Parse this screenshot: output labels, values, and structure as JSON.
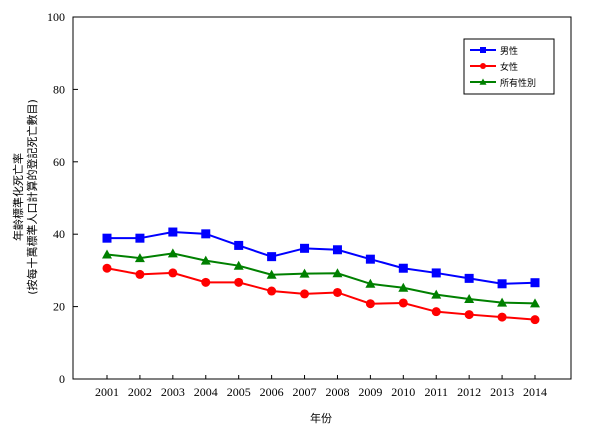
{
  "chart_data": {
    "type": "line",
    "categories": [
      "2001",
      "2002",
      "2003",
      "2004",
      "2005",
      "2006",
      "2007",
      "2008",
      "2009",
      "2010",
      "2011",
      "2012",
      "2013",
      "2014"
    ],
    "series": [
      {
        "name": "男性",
        "color": "#0000ff",
        "marker": "square",
        "values": [
          38.9,
          38.9,
          40.6,
          40.1,
          36.9,
          33.8,
          36.1,
          35.7,
          33.1,
          30.6,
          29.3,
          27.8,
          26.3,
          26.6
        ]
      },
      {
        "name": "女性",
        "color": "#ff0000",
        "marker": "circle",
        "values": [
          30.6,
          28.9,
          29.3,
          26.7,
          26.7,
          24.3,
          23.5,
          23.9,
          20.8,
          21.0,
          18.6,
          17.8,
          17.1,
          16.4
        ]
      },
      {
        "name": "所有性別",
        "color": "#008000",
        "marker": "triangle",
        "values": [
          34.4,
          33.4,
          34.7,
          32.7,
          31.3,
          28.8,
          29.1,
          29.2,
          26.3,
          25.2,
          23.3,
          22.1,
          21.1,
          20.9
        ]
      }
    ],
    "xlabel": "年份",
    "ylabel_line1": "年齡標準化死亡率",
    "ylabel_line2": "(按每十萬標準人口計算的登記死亡數目)",
    "ylim": [
      0,
      100
    ],
    "yticks": [
      0,
      20,
      40,
      60,
      80,
      100
    ],
    "grid": false,
    "legend_position": "top-right"
  }
}
